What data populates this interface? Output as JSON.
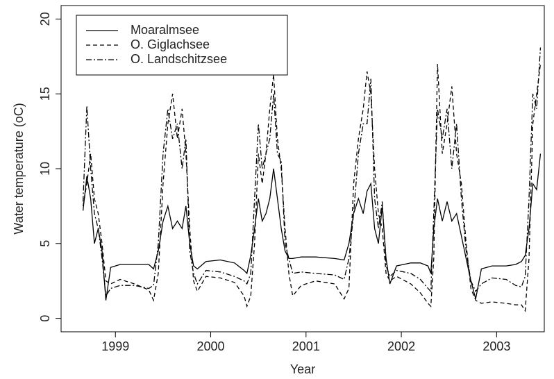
{
  "chart_data": {
    "type": "line",
    "xlabel": "Year",
    "ylabel": "Water temperature (oC)",
    "xlim": [
      1998.43,
      2003.5
    ],
    "ylim": [
      -0.9,
      20.9
    ],
    "xticks": [
      1999,
      2000,
      2001,
      2002,
      2003
    ],
    "yticks": [
      0,
      5,
      10,
      15,
      20
    ],
    "legend": "top-left",
    "x": [
      1998.66,
      1998.7,
      1998.74,
      1998.78,
      1998.82,
      1998.86,
      1998.9,
      1998.95,
      1999.05,
      1999.2,
      1999.35,
      1999.4,
      1999.45,
      1999.5,
      1999.55,
      1999.6,
      1999.65,
      1999.7,
      1999.74,
      1999.78,
      1999.82,
      1999.86,
      1999.95,
      2000.1,
      2000.25,
      2000.35,
      2000.38,
      2000.42,
      2000.46,
      2000.5,
      2000.54,
      2000.58,
      2000.62,
      2000.66,
      2000.7,
      2000.74,
      2000.78,
      2000.82,
      2000.86,
      2000.95,
      2001.1,
      2001.3,
      2001.4,
      2001.45,
      2001.5,
      2001.55,
      2001.6,
      2001.64,
      2001.68,
      2001.72,
      2001.76,
      2001.8,
      2001.84,
      2001.88,
      2001.95,
      2002.1,
      2002.2,
      2002.28,
      2002.31,
      2002.34,
      2002.38,
      2002.43,
      2002.48,
      2002.53,
      2002.58,
      2002.63,
      2002.68,
      2002.73,
      2002.78,
      2002.84,
      2002.95,
      2003.1,
      2003.2,
      2003.26,
      2003.3,
      2003.34,
      2003.38,
      2003.42,
      2003.46
    ],
    "series": [
      {
        "name": "Moaralmsee",
        "color": "#000000",
        "dash": "none",
        "values": [
          7.2,
          9.5,
          8,
          5,
          6,
          4.5,
          1.2,
          3.4,
          3.6,
          3.6,
          3.6,
          3.3,
          4.5,
          6.5,
          7.5,
          6,
          6.5,
          6,
          7.5,
          5,
          3.5,
          3.3,
          3.8,
          3.9,
          3.7,
          3.2,
          3.0,
          4.2,
          6,
          8,
          6.5,
          7,
          8,
          10,
          8,
          6,
          4.5,
          4,
          4,
          4.1,
          4.1,
          4.0,
          3.9,
          5,
          7,
          8,
          7,
          8.5,
          9,
          6,
          5,
          7.5,
          4,
          2.3,
          3.5,
          3.7,
          3.7,
          3.5,
          3.0,
          6,
          8,
          6.5,
          7.8,
          6.5,
          7,
          5.5,
          4,
          2.5,
          1.3,
          3.3,
          3.5,
          3.5,
          3.6,
          3.8,
          4.2,
          6,
          9,
          8.6,
          11
        ]
      },
      {
        "name": "O. Giglachsee",
        "color": "#000000",
        "dash": "6,4",
        "values": [
          7.5,
          9,
          11,
          8,
          7,
          5,
          2.5,
          2.3,
          2.6,
          2.3,
          1.9,
          1.2,
          3,
          9,
          13,
          15,
          12,
          14,
          11,
          6,
          2.5,
          1.8,
          2.8,
          2.7,
          2.4,
          1.5,
          0.8,
          1.5,
          5,
          11,
          9,
          11,
          14,
          16.3,
          12,
          10,
          6,
          3,
          1.5,
          2.2,
          2.5,
          2.3,
          1.3,
          2,
          9,
          12,
          14,
          16.5,
          15,
          10,
          7,
          6,
          3,
          2.5,
          2.8,
          2.3,
          1.7,
          1.0,
          0.8,
          4,
          17,
          11,
          13,
          15.5,
          11,
          9,
          5,
          2,
          1.2,
          1.0,
          1.1,
          1.0,
          0.9,
          0.9,
          0.5,
          4,
          13,
          15,
          17
        ]
      },
      {
        "name": "O. Landschitzsee",
        "color": "#000000",
        "dash": "8,3,2,3",
        "values": [
          7.8,
          14.2,
          10,
          7,
          6,
          4,
          1.5,
          2.0,
          2.2,
          2.2,
          2.0,
          2.2,
          5,
          11,
          14,
          12,
          13,
          10,
          12,
          4.5,
          3,
          2.3,
          3.2,
          3.1,
          2.8,
          2.5,
          2.3,
          3,
          8,
          13,
          10,
          11,
          12,
          15,
          11,
          10.5,
          5,
          4,
          3,
          3.1,
          3.0,
          2.9,
          2.6,
          4,
          7,
          11,
          13,
          13,
          16,
          8,
          6,
          7.8,
          3.5,
          2.8,
          3.2,
          3.0,
          2.6,
          2.0,
          1.8,
          7,
          14,
          12,
          14,
          10,
          13,
          8,
          4.5,
          2.5,
          1.8,
          2.3,
          2.7,
          2.6,
          2.2,
          2.1,
          2.8,
          8,
          15,
          14,
          18.1
        ]
      }
    ]
  }
}
